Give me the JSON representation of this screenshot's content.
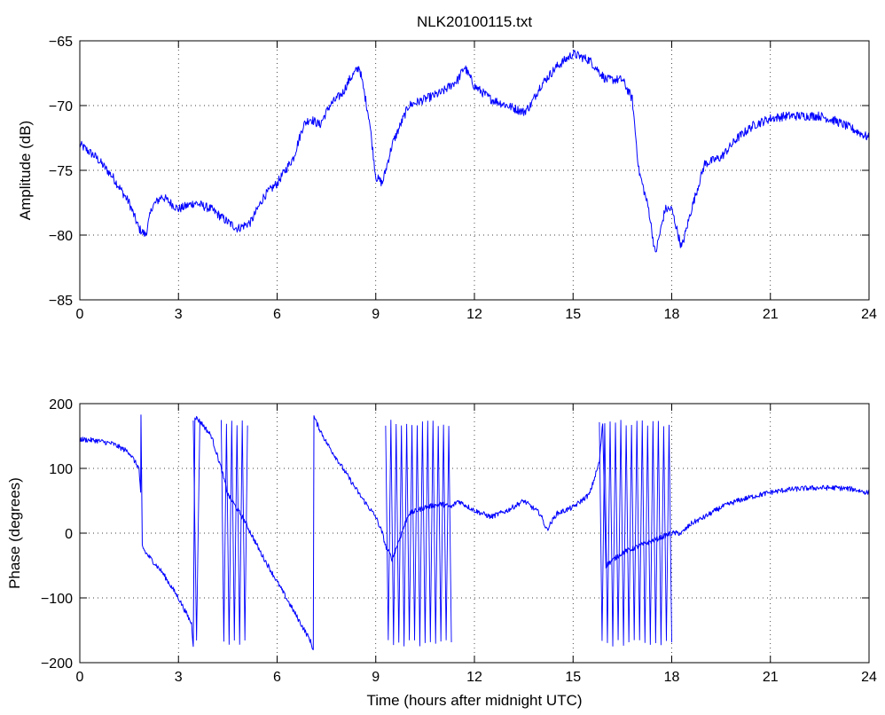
{
  "title": "NLK20100115.txt",
  "colors": {
    "series": "#0000ff",
    "axes": "#000000",
    "grid": "#000000",
    "background": "#ffffff"
  },
  "chart_data": [
    {
      "type": "line",
      "title": "NLK20100115.txt",
      "xlabel": "",
      "ylabel": "Amplitude (dB)",
      "xlim": [
        0,
        24
      ],
      "ylim": [
        -85,
        -65
      ],
      "xticks": [
        0,
        3,
        6,
        9,
        12,
        15,
        18,
        21,
        24
      ],
      "xtick_labels": [
        "0",
        "3",
        "6",
        "9",
        "12",
        "15",
        "18",
        "21",
        "24"
      ],
      "yticks": [
        -85,
        -80,
        -75,
        -70,
        -65
      ],
      "ytick_labels": [
        "−85",
        "−80",
        "−75",
        "−70",
        "−65"
      ],
      "grid": true,
      "series": [
        {
          "x": [
            0,
            0.5,
            1.0,
            1.5,
            1.8,
            2.0,
            2.2,
            2.5,
            3.0,
            3.5,
            4.0,
            4.5,
            4.8,
            5.2,
            5.6,
            6.0,
            6.5,
            6.8,
            7.0,
            7.3,
            7.6,
            8.0,
            8.2,
            8.5,
            8.8,
            9.0,
            9.2,
            9.5,
            10.0,
            10.5,
            11.0,
            11.5,
            11.7,
            12.0,
            12.5,
            13.0,
            13.5,
            13.7,
            14.0,
            14.5,
            15.0,
            15.5,
            16.0,
            16.5,
            16.8,
            17.0,
            17.3,
            17.5,
            17.8,
            18.0,
            18.3,
            18.6,
            19.0,
            19.5,
            20.0,
            20.5,
            21.0,
            21.5,
            22.0,
            22.5,
            23.0,
            23.5,
            24.0
          ],
          "y": [
            -73.0,
            -74.0,
            -75.5,
            -77.5,
            -79.5,
            -80.0,
            -77.8,
            -77.0,
            -78.0,
            -77.5,
            -78.0,
            -79.0,
            -79.5,
            -79.0,
            -77.0,
            -76.0,
            -74.0,
            -71.5,
            -71.0,
            -71.5,
            -70.0,
            -69.0,
            -68.0,
            -67.0,
            -71.0,
            -75.5,
            -76.0,
            -73.0,
            -70.0,
            -69.5,
            -69.0,
            -68.0,
            -67.0,
            -68.5,
            -69.5,
            -70.0,
            -70.5,
            -70.0,
            -68.5,
            -67.0,
            -66.0,
            -66.5,
            -68.0,
            -68.0,
            -69.5,
            -75.0,
            -78.0,
            -81.5,
            -78.0,
            -78.0,
            -81.0,
            -78.0,
            -74.5,
            -74.0,
            -72.5,
            -71.5,
            -71.0,
            -70.8,
            -70.8,
            -70.8,
            -71.2,
            -71.8,
            -72.5
          ]
        }
      ]
    },
    {
      "type": "line",
      "title": "",
      "xlabel": "Time (hours after midnight UTC)",
      "ylabel": "Phase (degrees)",
      "xlim": [
        0,
        24
      ],
      "ylim": [
        -200,
        200
      ],
      "xticks": [
        0,
        3,
        6,
        9,
        12,
        15,
        18,
        21,
        24
      ],
      "xtick_labels": [
        "0",
        "3",
        "6",
        "9",
        "12",
        "15",
        "18",
        "21",
        "24"
      ],
      "yticks": [
        -200,
        -100,
        0,
        100,
        200
      ],
      "ytick_labels": [
        "−200",
        "−100",
        "0",
        "100",
        "200"
      ],
      "grid": true,
      "series": [
        {
          "x": [
            0,
            0.5,
            1.0,
            1.5,
            1.8,
            1.85,
            1.86,
            1.9,
            2.0,
            2.5,
            3.0,
            3.4,
            3.45,
            3.5,
            3.6,
            3.7,
            4.0,
            4.3,
            4.5,
            5.0,
            5.5,
            6.0,
            6.5,
            7.0,
            7.1,
            7.12,
            7.2,
            7.5,
            8.0,
            8.5,
            9.0,
            9.2,
            9.3,
            9.5,
            10.0,
            10.5,
            11.0,
            11.3,
            11.5,
            12.0,
            12.5,
            13.0,
            13.5,
            14.0,
            14.2,
            14.5,
            15.0,
            15.5,
            15.8,
            15.9,
            16.0,
            16.5,
            17.0,
            17.5,
            18.0,
            18.3,
            18.6,
            19.0,
            19.5,
            20.0,
            20.5,
            21.0,
            21.5,
            22.0,
            22.5,
            23.0,
            23.5,
            24.0
          ],
          "y": [
            145,
            143,
            138,
            125,
            100,
            60,
            180,
            -20,
            -30,
            -60,
            -100,
            -140,
            -175,
            180,
            175,
            170,
            150,
            100,
            60,
            20,
            -30,
            -75,
            -120,
            -165,
            -180,
            180,
            170,
            140,
            100,
            60,
            25,
            0,
            -20,
            -40,
            30,
            40,
            45,
            40,
            50,
            35,
            25,
            35,
            50,
            30,
            5,
            30,
            40,
            60,
            110,
            170,
            -50,
            -30,
            -20,
            -10,
            0,
            0,
            15,
            25,
            40,
            50,
            57,
            63,
            67,
            69,
            70,
            70,
            68,
            62
          ]
        }
      ]
    }
  ]
}
